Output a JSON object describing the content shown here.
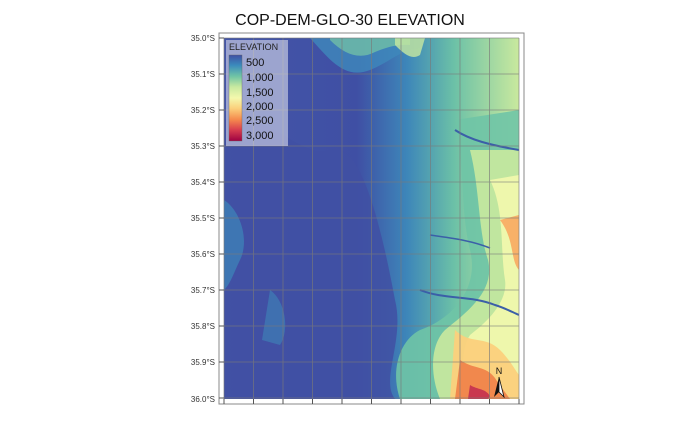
{
  "title": "COP-DEM-GLO-30 ELEVATION",
  "y_axis": {
    "ticks": [
      "35.0°S",
      "35.1°S",
      "35.2°S",
      "35.3°S",
      "35.4°S",
      "35.5°S",
      "35.6°S",
      "35.7°S",
      "35.8°S",
      "35.9°S",
      "36.0°S"
    ]
  },
  "legend": {
    "title": "ELEVATION",
    "items": [
      "500",
      "1,000",
      "1,500",
      "2,000",
      "2,500",
      "3,000"
    ],
    "colors": [
      "#3f4fa4",
      "#3b8bbd",
      "#71c5a5",
      "#c7e9a0",
      "#f4f8ad",
      "#fbd07c",
      "#f58a4d",
      "#d83e4f",
      "#9e0142"
    ]
  },
  "north_arrow": {
    "label": "N"
  },
  "chart_data": {
    "type": "heatmap",
    "title": "COP-DEM-GLO-30 ELEVATION",
    "ylabel": "",
    "ylim": [
      -36.0,
      -35.0
    ],
    "grid": true,
    "legend_position": "top-left",
    "value_range": [
      0,
      3000
    ]
  }
}
